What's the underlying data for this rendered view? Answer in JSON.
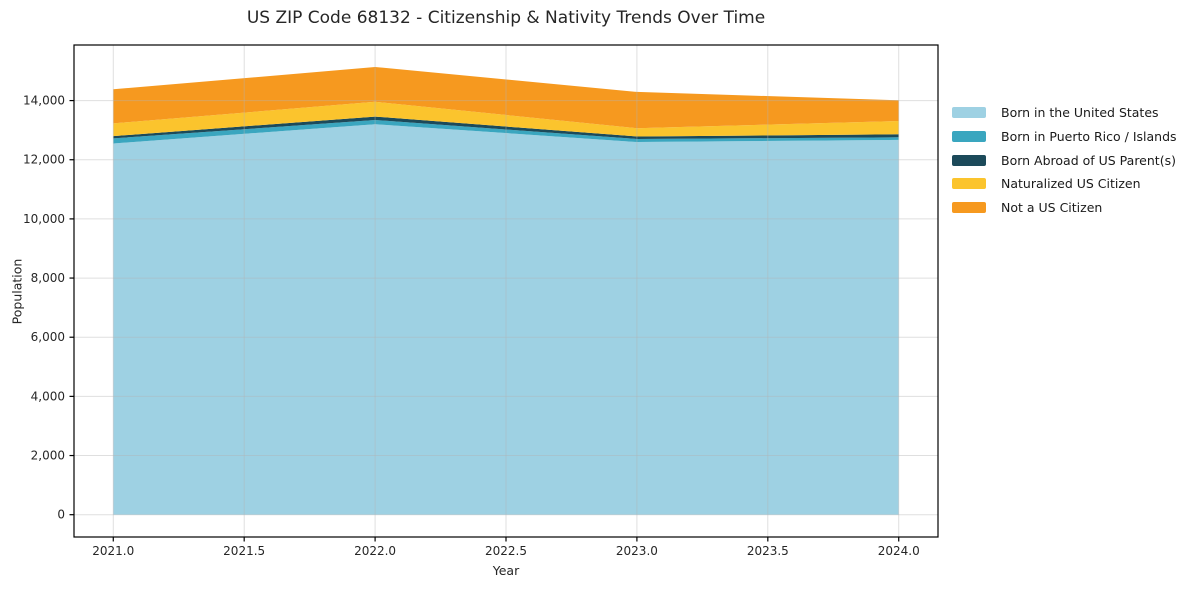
{
  "title": "US ZIP Code 68132 - Citizenship & Nativity Trends Over Time",
  "chart_data": {
    "type": "area",
    "stacked": true,
    "title": "US ZIP Code 68132 - Citizenship & Nativity Trends Over Time",
    "xlabel": "Year",
    "ylabel": "Population",
    "x": [
      2021,
      2022,
      2023,
      2024
    ],
    "series": [
      {
        "name": "Born in the United States",
        "color": "#9ED1E3",
        "values": [
          12550,
          13200,
          12600,
          12670
        ]
      },
      {
        "name": "Born in Puerto Rico / Islands",
        "color": "#3AA6BF",
        "values": [
          170,
          145,
          100,
          90
        ]
      },
      {
        "name": "Born Abroad of US Parent(s)",
        "color": "#1C4A5A",
        "values": [
          80,
          115,
          85,
          100
        ]
      },
      {
        "name": "Naturalized US Citizen",
        "color": "#FBC42D",
        "values": [
          430,
          500,
          280,
          450
        ]
      },
      {
        "name": "Not a US Citizen",
        "color": "#F6991F",
        "values": [
          1150,
          1175,
          1230,
          700
        ]
      }
    ],
    "totals": [
      14380,
      15135,
      14295,
      14010
    ],
    "xlim": [
      2020.85,
      2024.15
    ],
    "ylim": [
      -754,
      15879
    ],
    "xticks": {
      "values": [
        2021.0,
        2021.5,
        2022.0,
        2022.5,
        2023.0,
        2023.5,
        2024.0
      ],
      "labels": [
        "2021.0",
        "2021.5",
        "2022.0",
        "2022.5",
        "2023.0",
        "2023.5",
        "2024.0"
      ]
    },
    "yticks": {
      "values": [
        0,
        2000,
        4000,
        6000,
        8000,
        10000,
        12000,
        14000
      ],
      "labels": [
        "0",
        "2,000",
        "4,000",
        "6,000",
        "8,000",
        "10,000",
        "12,000",
        "14,000"
      ]
    },
    "grid": true,
    "legend_position": "right of plot, outside"
  },
  "colors": {
    "background": "#ffffff",
    "spine": "#000000",
    "grid": "rgba(178,178,178,0.42)",
    "tick_text": "#262626"
  }
}
